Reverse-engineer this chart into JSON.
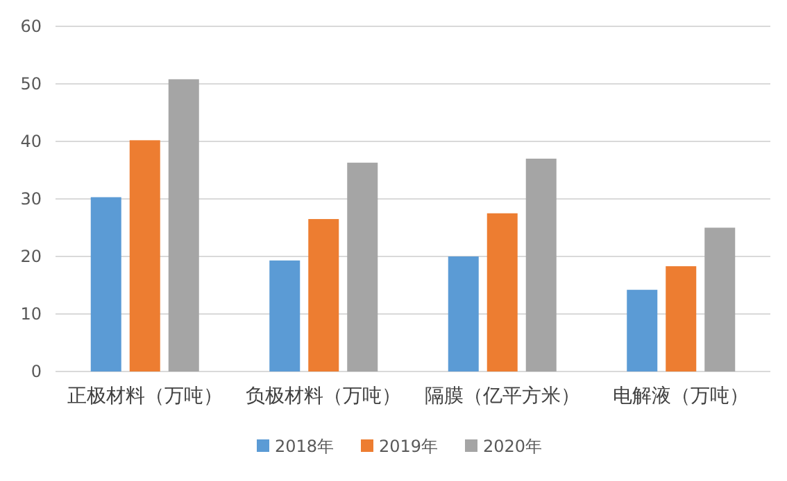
{
  "chart_data": {
    "type": "bar",
    "categories": [
      "正极材料（万吨）",
      "负极材料（万吨）",
      "隔膜（亿平方米）",
      "电解液（万吨）"
    ],
    "series": [
      {
        "name": "2018年",
        "color": "#5b9bd5",
        "values": [
          30.3,
          19.3,
          20,
          14.2
        ]
      },
      {
        "name": "2019年",
        "color": "#ed7d31",
        "values": [
          40.2,
          26.5,
          27.5,
          18.3
        ]
      },
      {
        "name": "2020年",
        "color": "#a5a5a5",
        "values": [
          50.8,
          36.3,
          37,
          25
        ]
      }
    ],
    "ylim": [
      0,
      60
    ],
    "yticks": [
      0,
      10,
      20,
      30,
      40,
      50,
      60
    ],
    "grid": "y",
    "legend": "bottom"
  }
}
